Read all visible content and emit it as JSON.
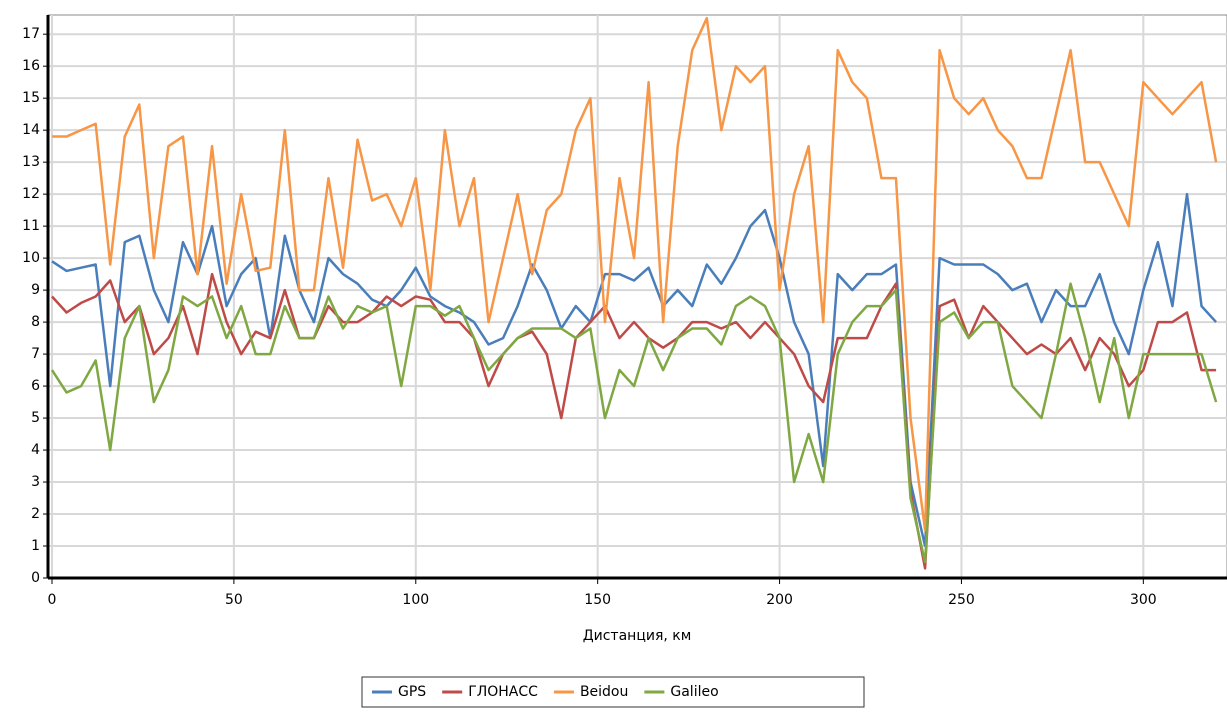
{
  "chart_data": {
    "type": "line",
    "x_label": "Дистанция, км",
    "x": [
      0,
      4,
      8,
      12,
      16,
      20,
      24,
      28,
      32,
      36,
      40,
      44,
      48,
      52,
      56,
      60,
      64,
      68,
      72,
      76,
      80,
      84,
      88,
      92,
      96,
      100,
      104,
      108,
      112,
      116,
      120,
      124,
      128,
      132,
      136,
      140,
      144,
      148,
      152,
      156,
      160,
      164,
      168,
      172,
      176,
      180,
      184,
      188,
      192,
      196,
      200,
      204,
      208,
      212,
      216,
      220,
      224,
      228,
      232,
      236,
      240,
      244,
      248,
      252,
      256,
      260,
      264,
      268,
      272,
      276,
      280,
      284,
      288,
      292,
      296,
      300,
      304,
      308,
      312,
      316,
      320
    ],
    "series": [
      {
        "name": "GPS",
        "color": "#4a7ebb",
        "values": [
          9.9,
          9.6,
          9.7,
          9.8,
          6,
          10.5,
          10.7,
          9,
          8,
          10.5,
          9.5,
          11,
          8.5,
          9.5,
          10,
          7.5,
          10.7,
          9,
          8,
          10,
          9.5,
          9.2,
          8.7,
          8.5,
          9,
          9.7,
          8.8,
          8.5,
          8.3,
          8,
          7.3,
          7.5,
          8.5,
          9.8,
          9,
          7.8,
          8.5,
          8,
          9.5,
          9.5,
          9.3,
          9.7,
          8.5,
          9,
          8.5,
          9.8,
          9.2,
          10,
          11,
          11.5,
          10,
          8,
          7,
          3.5,
          9.5,
          9,
          9.5,
          9.5,
          9.8,
          3,
          1,
          10,
          9.8,
          9.8,
          9.8,
          9.5,
          9,
          9.2,
          8,
          9,
          8.5,
          8.5,
          9.5,
          8,
          7,
          9,
          10.5,
          8.5,
          12,
          8.5,
          8
        ]
      },
      {
        "name": "ГЛОНАСС",
        "color": "#be4b48",
        "values": [
          8.8,
          8.3,
          8.6,
          8.8,
          9.3,
          8,
          8.5,
          7,
          7.5,
          8.5,
          7,
          9.5,
          8,
          7,
          7.7,
          7.5,
          9,
          7.5,
          7.5,
          8.5,
          8,
          8,
          8.3,
          8.8,
          8.5,
          8.8,
          8.7,
          8,
          8,
          7.5,
          6,
          7,
          7.5,
          7.7,
          7,
          5,
          7.5,
          8,
          8.5,
          7.5,
          8,
          7.5,
          7.2,
          7.5,
          8,
          8,
          7.8,
          8,
          7.5,
          8,
          7.5,
          7,
          6,
          5.5,
          7.5,
          7.5,
          7.5,
          8.5,
          9.2,
          2.7,
          0.3,
          8.5,
          8.7,
          7.5,
          8.5,
          8,
          7.5,
          7,
          7.3,
          7,
          7.5,
          6.5,
          7.5,
          7,
          6,
          6.5,
          8,
          8,
          8.3,
          6.5,
          6.5
        ]
      },
      {
        "name": "Beidou",
        "color": "#f79646",
        "values": [
          13.8,
          13.8,
          14,
          14.2,
          9.8,
          13.8,
          14.8,
          10,
          13.5,
          13.8,
          9.5,
          13.5,
          9.2,
          12,
          9.6,
          9.7,
          14,
          9,
          9,
          12.5,
          9.7,
          13.7,
          11.8,
          12,
          11,
          12.5,
          9,
          14,
          11,
          12.5,
          8,
          10,
          12,
          9.5,
          11.5,
          12,
          14,
          15,
          8,
          12.5,
          10,
          15.5,
          8,
          13.5,
          16.5,
          17.5,
          14,
          16,
          15.5,
          16,
          9,
          12,
          13.5,
          8,
          16.5,
          15.5,
          15,
          12.5,
          12.5,
          5,
          1.5,
          16.5,
          15,
          14.5,
          15,
          14,
          13.5,
          12.5,
          12.5,
          14.5,
          16.5,
          13,
          13,
          12,
          11,
          15.5,
          15,
          14.5,
          15,
          15.5,
          13
        ]
      },
      {
        "name": "Galileo",
        "color": "#7fa843",
        "values": [
          6.5,
          5.8,
          6,
          6.8,
          4,
          7.5,
          8.5,
          5.5,
          6.5,
          8.8,
          8.5,
          8.8,
          7.5,
          8.5,
          7,
          7,
          8.5,
          7.5,
          7.5,
          8.8,
          7.8,
          8.5,
          8.3,
          8.5,
          6,
          8.5,
          8.5,
          8.2,
          8.5,
          7.5,
          6.5,
          7,
          7.5,
          7.8,
          7.8,
          7.8,
          7.5,
          7.8,
          5,
          6.5,
          6,
          7.5,
          6.5,
          7.5,
          7.8,
          7.8,
          7.3,
          8.5,
          8.8,
          8.5,
          7.5,
          3,
          4.5,
          3,
          7,
          8,
          8.5,
          8.5,
          9,
          2.5,
          0.5,
          8,
          8.3,
          7.5,
          8,
          8,
          6,
          5.5,
          5,
          7,
          9.2,
          7.5,
          5.5,
          7.5,
          5,
          7,
          7,
          7,
          7,
          7,
          5.5
        ]
      }
    ],
    "xlim": [
      -1.1,
      323
    ],
    "xticks": [
      0,
      50,
      100,
      150,
      200,
      250,
      300
    ],
    "ylim": [
      0,
      17.6
    ],
    "yticks": [
      0,
      1,
      2,
      3,
      4,
      5,
      6,
      7,
      8,
      9,
      10,
      11,
      12,
      13,
      14,
      15,
      16,
      17
    ],
    "grid": true
  }
}
